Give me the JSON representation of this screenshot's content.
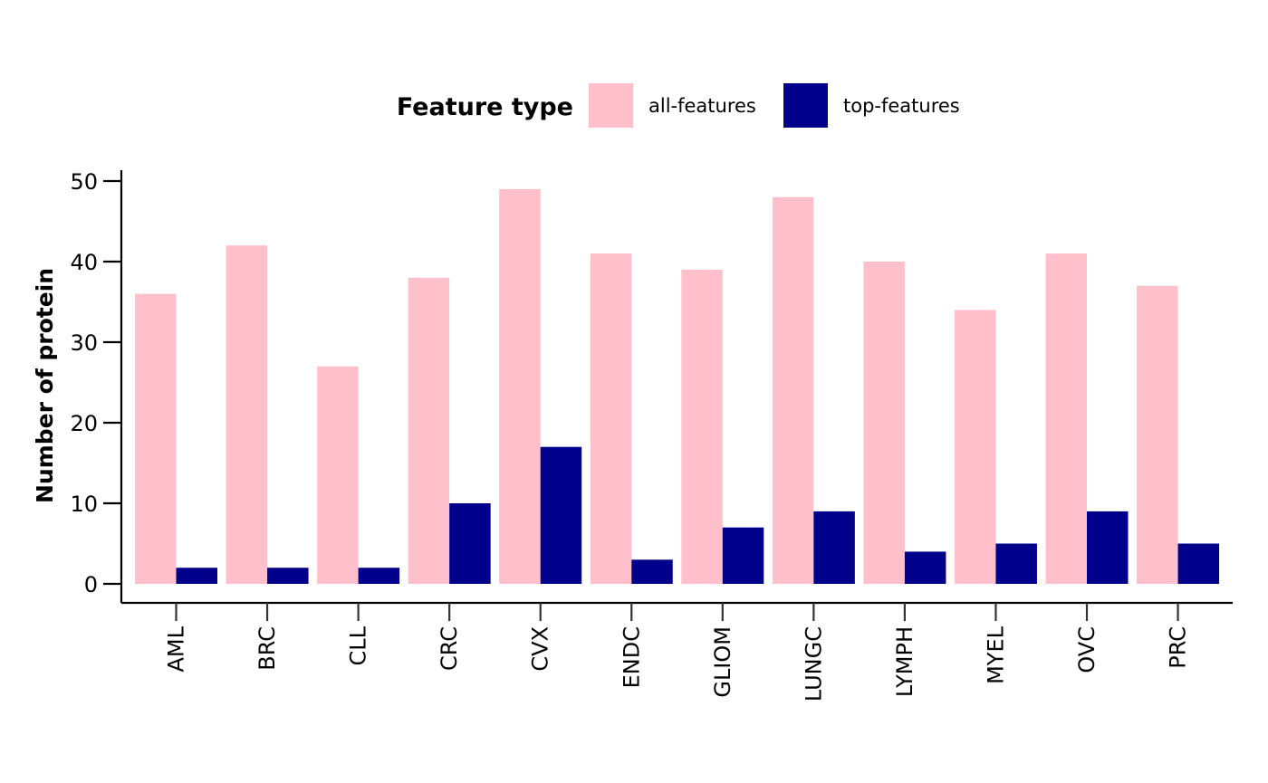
{
  "chart_data": {
    "type": "bar",
    "title": "",
    "xlabel": "",
    "ylabel": "Number of protein",
    "ylim": [
      0,
      50
    ],
    "yticks": [
      0,
      10,
      20,
      30,
      40,
      50
    ],
    "grid": false,
    "legend": {
      "title": "Feature type",
      "placement": "top"
    },
    "categories": [
      "AML",
      "BRC",
      "CLL",
      "CRC",
      "CVX",
      "ENDC",
      "GLIOM",
      "LUNGC",
      "LYMPH",
      "MYEL",
      "OVC",
      "PRC"
    ],
    "series": [
      {
        "name": "all-features",
        "color": "#FFC0CB",
        "values": [
          36,
          42,
          27,
          38,
          49,
          41,
          39,
          48,
          40,
          34,
          41,
          37
        ]
      },
      {
        "name": "top-features",
        "color": "#00008B",
        "values": [
          2,
          2,
          2,
          10,
          17,
          3,
          7,
          9,
          4,
          5,
          9,
          5
        ]
      }
    ]
  }
}
